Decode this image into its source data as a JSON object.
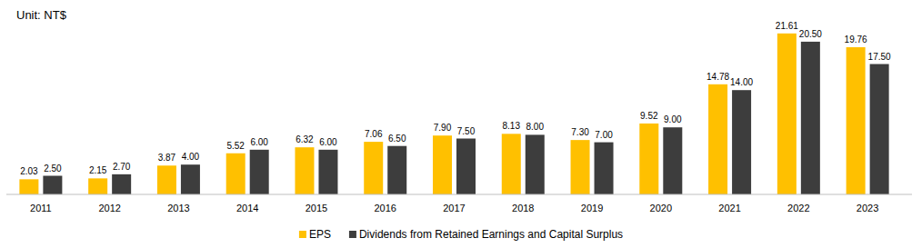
{
  "chart_data": {
    "type": "bar",
    "y_label": "Unit: NT$",
    "categories": [
      "2011",
      "2012",
      "2013",
      "2014",
      "2015",
      "2016",
      "2017",
      "2018",
      "2019",
      "2020",
      "2021",
      "2022",
      "2023"
    ],
    "series": [
      {
        "name": "EPS",
        "color": "#ffc000",
        "values": [
          2.03,
          2.15,
          3.87,
          5.52,
          6.32,
          7.06,
          7.9,
          8.13,
          7.3,
          9.52,
          14.78,
          21.61,
          19.76
        ],
        "value_labels": [
          "2.03",
          "2.15",
          "3.87",
          "5.52",
          "6.32",
          "7.06",
          "7.90",
          "8.13",
          "7.30",
          "9.52",
          "14.78",
          "21.61",
          "19.76"
        ]
      },
      {
        "name": "Dividends from Retained Earnings and Capital Surplus",
        "color": "#3d3d3d",
        "values": [
          2.5,
          2.7,
          4.0,
          6.0,
          6.0,
          6.5,
          7.5,
          8.0,
          7.0,
          9.0,
          14.0,
          20.5,
          17.5
        ],
        "value_labels": [
          "2.50",
          "2.70",
          "4.00",
          "6.00",
          "6.00",
          "6.50",
          "7.50",
          "8.00",
          "7.00",
          "9.00",
          "14.00",
          "20.50",
          "17.50"
        ]
      }
    ],
    "ylim": [
      0,
      25
    ],
    "grid": false,
    "legend": "bottom",
    "data_labels": true,
    "tick_labels": "x"
  }
}
